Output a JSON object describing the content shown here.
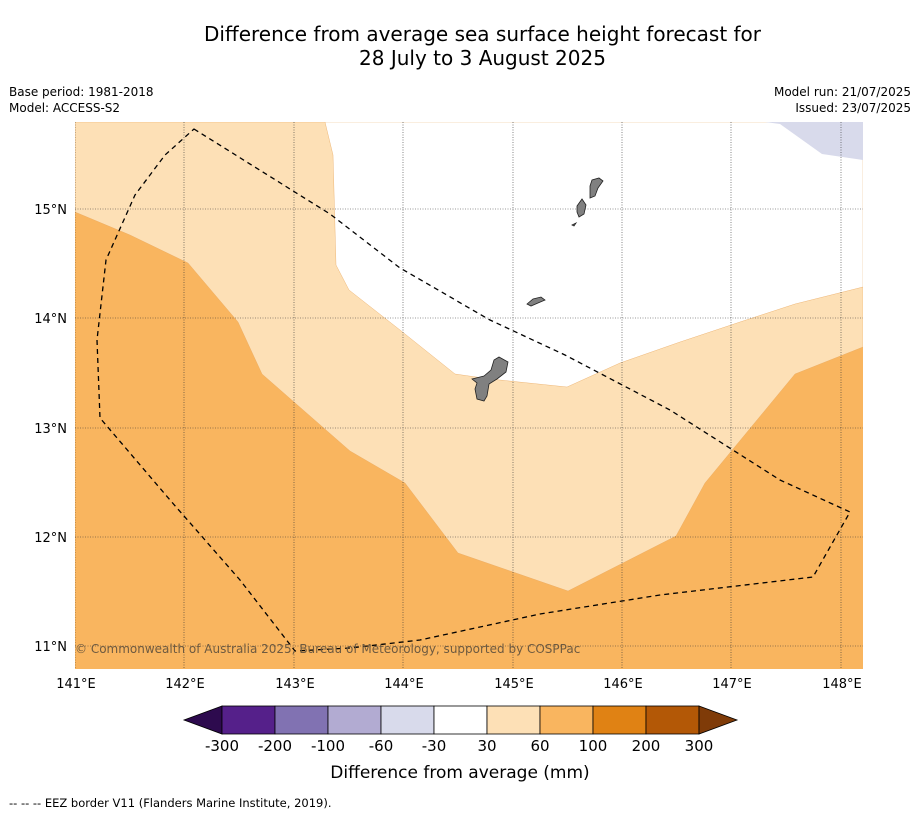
{
  "title_line1": "Difference from average sea surface height forecast for",
  "title_line2": "28 July to 3 August 2025",
  "base_period": "Base period: 1981-2018",
  "model": "Model: ACCESS-S2",
  "model_run": "Model run: 21/07/2025",
  "issued": "Issued: 23/07/2025",
  "copyright": "© Commonwealth of Australia 2025, Bureau of Meteorology, supported by COSPPac",
  "lon_ticks": [
    "141°E",
    "142°E",
    "143°E",
    "144°E",
    "145°E",
    "146°E",
    "147°E",
    "148°E"
  ],
  "lat_ticks": [
    "15°N",
    "14°N",
    "13°N",
    "12°N",
    "11°N"
  ],
  "colorbar": {
    "title": "Difference from average (mm)",
    "labels": [
      "-300",
      "-200",
      "-100",
      "-60",
      "-30",
      "30",
      "60",
      "100",
      "200",
      "300"
    ],
    "colors": [
      "#2d0a4e",
      "#55208a",
      "#8172b2",
      "#b2abd2",
      "#d8daeb",
      "#ffffff",
      "#fde0b6",
      "#f9b55f",
      "#e08214",
      "#b35806",
      "#7f3b08"
    ]
  },
  "legend_note": "--  --  -- EEZ border V11 (Flanders Marine Institute, 2019)."
}
